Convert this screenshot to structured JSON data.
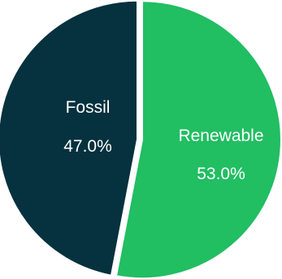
{
  "chart_data": {
    "type": "pie",
    "slices": [
      {
        "label": "Renewable",
        "percent_label": "53.0%",
        "value": 53.0,
        "color": "#21BE62"
      },
      {
        "label": "Fossil",
        "percent_label": "47.0%",
        "value": 47.0,
        "color": "#06313E"
      }
    ],
    "start": "top",
    "direction": "clockwise",
    "separator_color": "#ffffff"
  }
}
